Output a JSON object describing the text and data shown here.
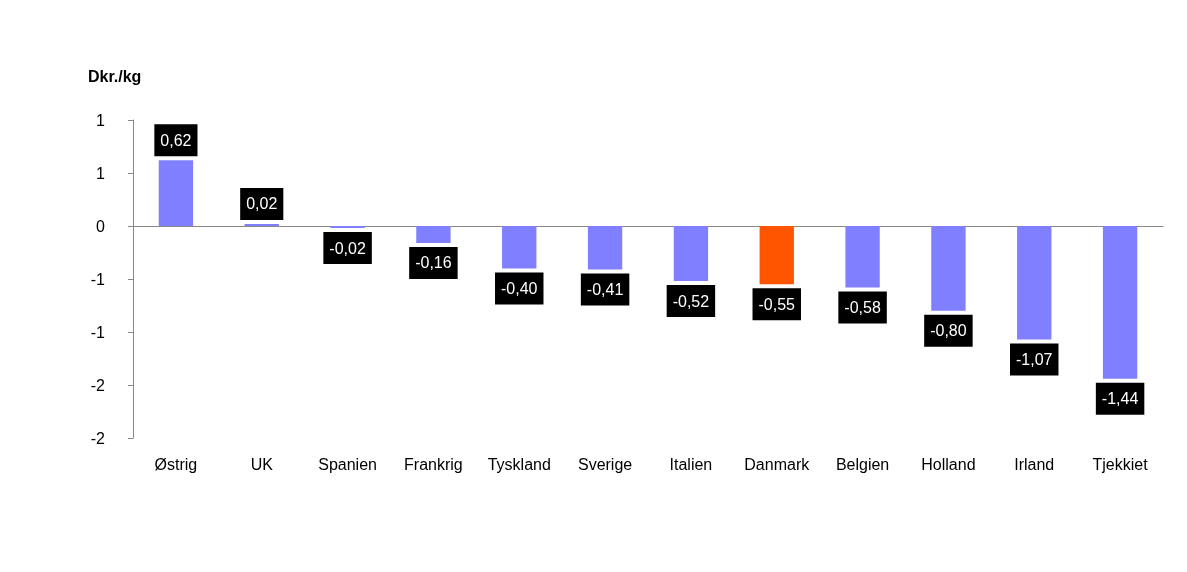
{
  "chart_data": {
    "type": "bar",
    "ylabel": "Dkr./kg",
    "categories": [
      "Østrig",
      "UK",
      "Spanien",
      "Frankrig",
      "Tyskland",
      "Sverige",
      "Italien",
      "Danmark",
      "Belgien",
      "Holland",
      "Irland",
      "Tjekkiet"
    ],
    "values": [
      0.62,
      0.02,
      -0.02,
      -0.16,
      -0.4,
      -0.41,
      -0.52,
      -0.55,
      -0.58,
      -0.8,
      -1.07,
      -1.44
    ],
    "value_labels": [
      "0,62",
      "0,02",
      "-0,02",
      "-0,16",
      "-0,40",
      "-0,41",
      "-0,52",
      "-0,55",
      "-0,58",
      "-0,80",
      "-1,07",
      "-1,44"
    ],
    "colors": [
      "#7f7fff",
      "#7f7fff",
      "#7f7fff",
      "#7f7fff",
      "#7f7fff",
      "#7f7fff",
      "#7f7fff",
      "#ff5500",
      "#7f7fff",
      "#7f7fff",
      "#7f7fff",
      "#7f7fff"
    ],
    "ylim": [
      -2,
      1
    ],
    "yticks": [
      {
        "value": -2,
        "label": "-2"
      },
      {
        "value": -1.5,
        "label": "-2"
      },
      {
        "value": -1,
        "label": "-1"
      },
      {
        "value": -0.5,
        "label": "-1"
      },
      {
        "value": 0,
        "label": "0"
      },
      {
        "value": 0.5,
        "label": "1"
      },
      {
        "value": 1,
        "label": "1"
      }
    ],
    "tick_labels": "xy"
  }
}
